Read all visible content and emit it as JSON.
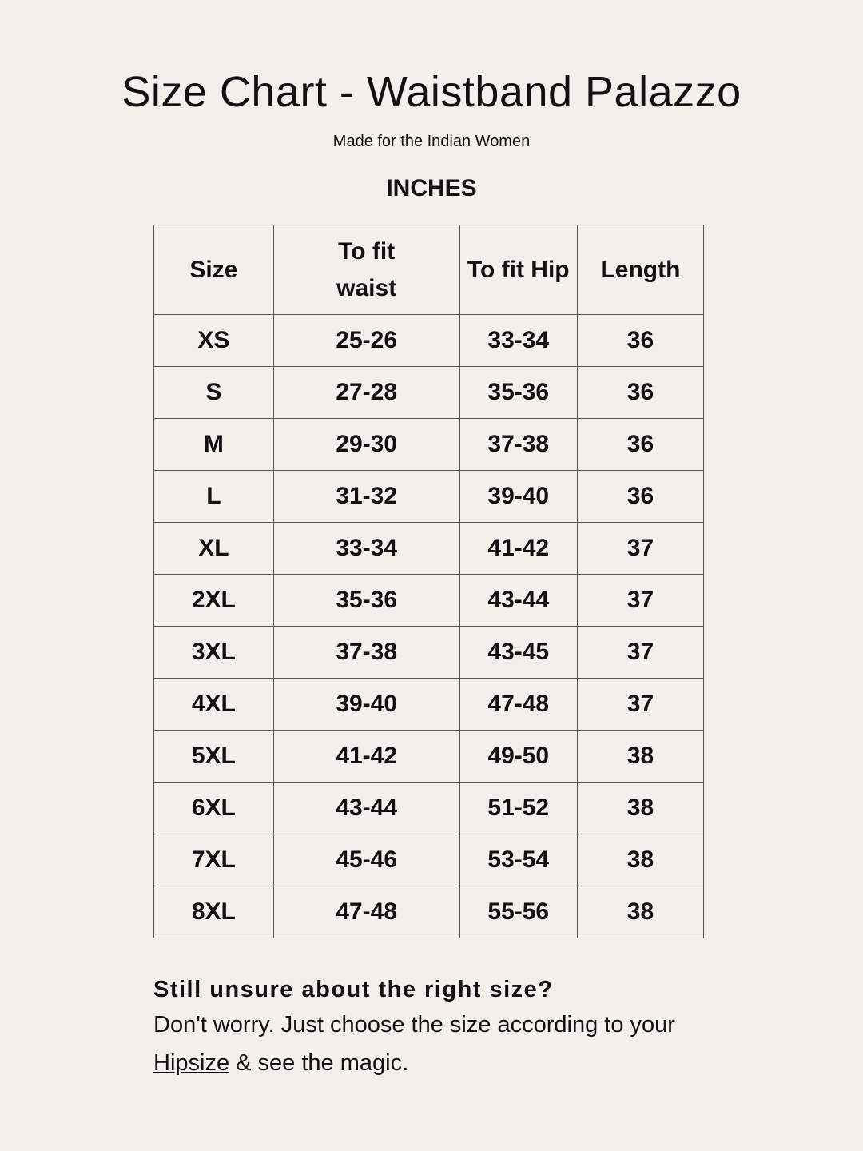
{
  "title": "Size Chart - Waistband Palazzo",
  "subtitle": "Made for the Indian Women",
  "unit": "INCHES",
  "table": {
    "headers": [
      "Size",
      "To fit waist",
      "To fit Hip",
      "Length"
    ],
    "rows": [
      [
        "XS",
        "25-26",
        "33-34",
        "36"
      ],
      [
        "S",
        "27-28",
        "35-36",
        "36"
      ],
      [
        "M",
        "29-30",
        "37-38",
        "36"
      ],
      [
        "L",
        "31-32",
        "39-40",
        "36"
      ],
      [
        "XL",
        "33-34",
        "41-42",
        "37"
      ],
      [
        "2XL",
        "35-36",
        "43-44",
        "37"
      ],
      [
        "3XL",
        "37-38",
        "43-45",
        "37"
      ],
      [
        "4XL",
        "39-40",
        "47-48",
        "37"
      ],
      [
        "5XL",
        "41-42",
        "49-50",
        "38"
      ],
      [
        "6XL",
        "43-44",
        "51-52",
        "38"
      ],
      [
        "7XL",
        "45-46",
        "53-54",
        "38"
      ],
      [
        "8XL",
        "47-48",
        "55-56",
        "38"
      ]
    ]
  },
  "note": {
    "heading": "Still unsure about the right size?",
    "body_before": "Don't worry. Just choose the size according to your ",
    "link": "Hipsize",
    "body_after": " & see the magic."
  },
  "colors": {
    "background": "#f3efeb",
    "text": "#111111",
    "border": "#555555"
  }
}
